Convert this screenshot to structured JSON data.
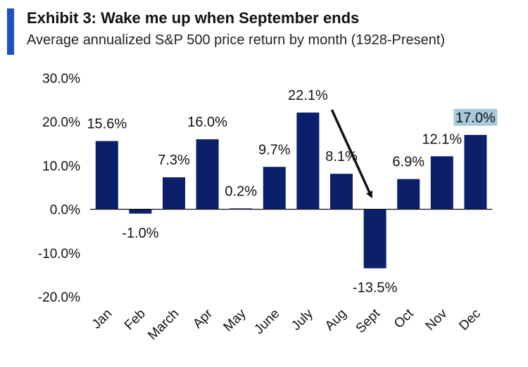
{
  "header": {
    "title": "Exhibit 3: Wake me up when September ends",
    "subtitle": "Average annualized S&P 500 price return by month (1928-Present)"
  },
  "colors": {
    "accent": "#1f4fc4",
    "bar": "#0c1f6b",
    "highlight": "#a8c8dc",
    "axis": "#111111",
    "arrow": "#111111"
  },
  "chart_data": {
    "type": "bar",
    "title": "Exhibit 3: Wake me up when September ends",
    "subtitle": "Average annualized S&P 500 price return by month (1928-Present)",
    "xlabel": "",
    "ylabel": "",
    "categories": [
      "Jan",
      "Feb",
      "March",
      "Apr",
      "May",
      "June",
      "July",
      "Aug",
      "Sept",
      "Oct",
      "Nov",
      "Dec"
    ],
    "values": [
      15.6,
      -1.0,
      7.3,
      16.0,
      0.2,
      9.7,
      22.1,
      8.1,
      -13.5,
      6.9,
      12.1,
      17.0
    ],
    "data_labels": [
      "15.6%",
      "-1.0%",
      "7.3%",
      "16.0%",
      "0.2%",
      "9.7%",
      "22.1%",
      "8.1%",
      "-13.5%",
      "6.9%",
      "12.1%",
      "17.0%"
    ],
    "highlighted_label_index": 11,
    "ylim": [
      -20,
      30
    ],
    "yticks": [
      30,
      20,
      10,
      0,
      -10,
      -20
    ],
    "ytick_labels": [
      "30.0%",
      "20.0%",
      "10.0%",
      "0.0%",
      "-10.0%",
      "-20.0%"
    ],
    "grid": false,
    "annotations": [
      {
        "type": "arrow",
        "from_category": "July",
        "to_category": "Sept",
        "note": "arrow pointing down toward September bar"
      }
    ]
  }
}
